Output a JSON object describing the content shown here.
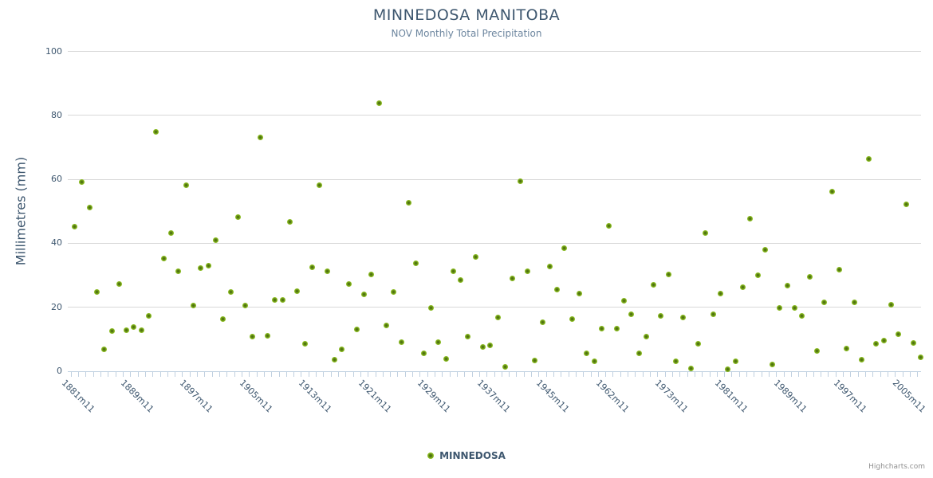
{
  "header": {
    "title": "MINNEDOSA MANITOBA",
    "subtitle": "NOV Monthly Total Precipitation"
  },
  "y_axis": {
    "title": "Millimetres (mm)"
  },
  "legend": {
    "label": "MINNEDOSA",
    "marker_icon": "circle-marker-icon"
  },
  "credits": {
    "label": "Highcharts.com"
  },
  "colors": {
    "marker": "#8bbc21",
    "marker_center": "#4e720f",
    "title_text": "#3E576F",
    "subtitle_text": "#6D869F",
    "gridline": "#d8d8d8",
    "axis_line": "#c0d0e0",
    "credits_text": "#909090"
  },
  "chart_data": {
    "type": "scatter",
    "title": "MINNEDOSA MANITOBA",
    "subtitle": "NOV Monthly Total Precipitation",
    "xlabel": "",
    "ylabel": "Millimetres (mm)",
    "ylim": [
      0,
      100
    ],
    "y_ticks": [
      0,
      20,
      40,
      60,
      80,
      100
    ],
    "grid": "horizontal",
    "legend_position": "bottom-center",
    "x_tick_label_indices": [
      0,
      8,
      16,
      24,
      32,
      40,
      48,
      56,
      64,
      72,
      80,
      88,
      96,
      104,
      112
    ],
    "x_tick_labels": [
      "1881m11",
      "1889m11",
      "1897m11",
      "1905m11",
      "1913m11",
      "1921m11",
      "1929m11",
      "1937m11",
      "1945m11",
      "1962m11",
      "1973m11",
      "1981m11",
      "1989m11",
      "1997m11",
      "2005m11"
    ],
    "series": [
      {
        "name": "MINNEDOSA",
        "values": [
          45.1,
          59.1,
          51.2,
          24.7,
          6.9,
          12.6,
          27.2,
          12.9,
          13.7,
          12.8,
          17.3,
          74.9,
          35.3,
          43.2,
          31.3,
          58.1,
          20.5,
          32.2,
          33.1,
          40.9,
          16.4,
          24.8,
          48.2,
          20.5,
          10.9,
          73.1,
          11.0,
          22.2,
          22.4,
          46.8,
          25.0,
          8.7,
          32.5,
          58.2,
          31.3,
          3.7,
          6.8,
          27.3,
          13.1,
          24.1,
          30.3,
          83.7,
          14.2,
          24.9,
          9.0,
          52.7,
          33.8,
          5.5,
          19.9,
          9.2,
          3.9,
          31.2,
          28.6,
          10.8,
          35.8,
          7.7,
          8.2,
          16.9,
          1.4,
          28.9,
          59.5,
          31.3,
          3.4,
          15.3,
          32.7,
          25.5,
          38.4,
          16.2,
          24.4,
          5.6,
          3.2,
          13.3,
          45.5,
          13.3,
          22.1,
          17.8,
          5.5,
          10.8,
          27.0,
          17.2,
          30.3,
          3.0,
          16.7,
          0.9,
          8.5,
          43.2,
          17.9,
          24.2,
          0.5,
          3.2,
          26.4,
          47.8,
          29.9,
          38.1,
          2.2,
          19.9,
          26.7,
          19.9,
          17.2,
          29.4,
          6.4,
          21.6,
          56.1,
          31.7,
          7.0,
          21.6,
          3.7,
          66.3,
          8.6,
          9.6,
          20.8,
          11.6,
          52.2,
          8.9,
          4.3
        ]
      }
    ]
  }
}
